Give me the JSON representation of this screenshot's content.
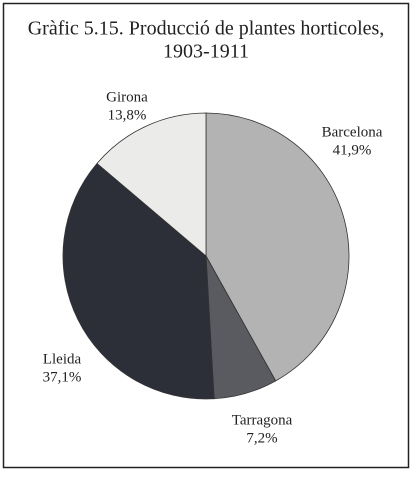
{
  "chart_data": {
    "type": "pie",
    "title": [
      "Gràfic 5.15. Producció de plantes horticoles,",
      "1903-1911"
    ],
    "categories": [
      "Barcelona",
      "Tarragona",
      "Lleida",
      "Girona"
    ],
    "values": [
      41.9,
      7.2,
      37.1,
      13.8
    ],
    "value_labels": [
      "41,9%",
      "7,2%",
      "37,1%",
      "13,8%"
    ],
    "colors": [
      "#b3b3b3",
      "#5a5b60",
      "#2c2f38",
      "#ebebea"
    ]
  }
}
